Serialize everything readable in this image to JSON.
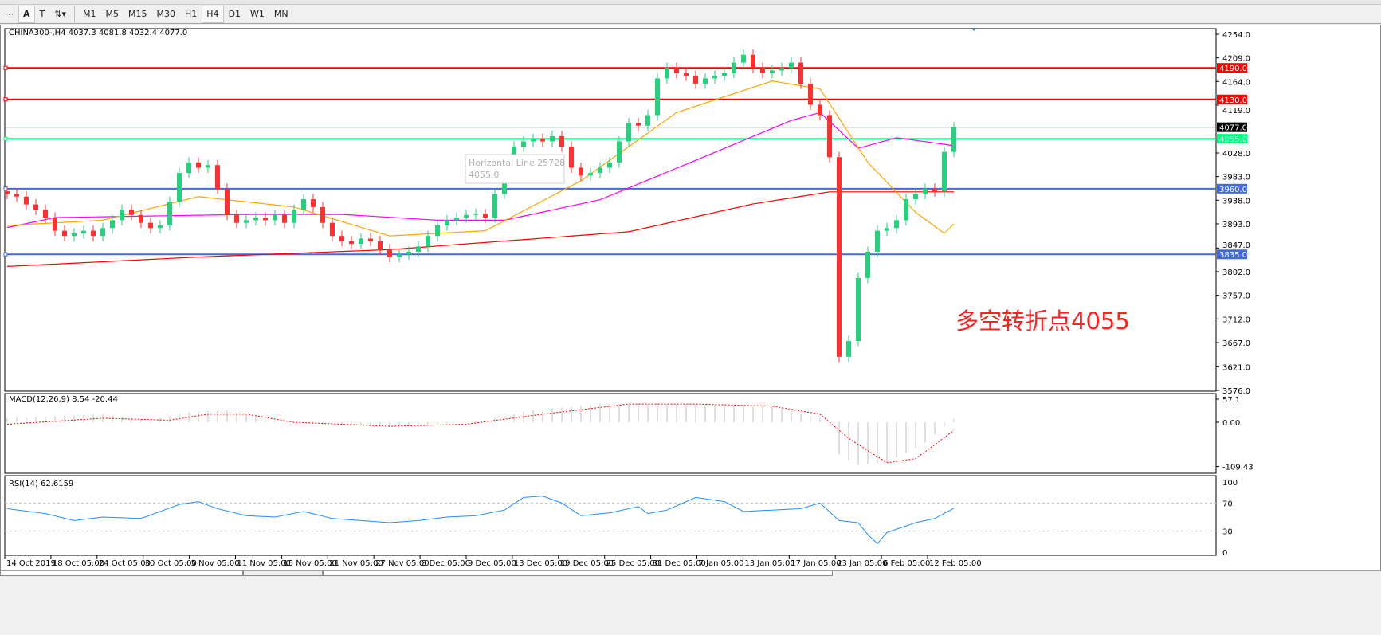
{
  "toolbar": {
    "icons": [
      "grid-dots-icon",
      "text-A-icon",
      "text-label-icon",
      "arrows-icon"
    ],
    "timeframes": [
      "M1",
      "M5",
      "M15",
      "M30",
      "H1",
      "H4",
      "D1",
      "W1",
      "MN"
    ],
    "active_timeframe": "H4"
  },
  "chart": {
    "header": "CHINA300-,H4  4037.3 4081.8 4032.4 4077.0",
    "annotation": "多空转折点4055",
    "tooltip": {
      "line1": "Horizontal Line 25728",
      "line2": "4055.0"
    },
    "colors": {
      "bull": "#26d07c",
      "bear": "#ff3030",
      "ma_fast": "#ffa500",
      "ma_mid": "#ff00ff",
      "ma_slow": "#ff0000",
      "rsi": "#1e90ff",
      "macd_hist": "#c0c0c0",
      "macd_signal": "#ff0000"
    }
  },
  "chart_data": [
    {
      "type": "candlestick",
      "title": "CHINA300-,H4",
      "ylim": [
        3576,
        4254
      ],
      "price_ticks": [
        "4254.0",
        "4209.0",
        "4164.0",
        "4119.0",
        "4028.0",
        "3983.0",
        "3938.0",
        "3893.0",
        "3847.0",
        "3802.0",
        "3757.0",
        "3712.0",
        "3667.0",
        "3621.0",
        "3576.0"
      ],
      "x_ticks": [
        "14 Oct 2019",
        "18 Oct 05:00",
        "24 Oct 05:00",
        "30 Oct 05:00",
        "5 Nov 05:00",
        "11 Nov 05:00",
        "15 Nov 05:00",
        "21 Nov 05:00",
        "27 Nov 05:00",
        "3 Dec 05:00",
        "9 Dec 05:00",
        "13 Dec 05:00",
        "19 Dec 05:00",
        "25 Dec 05:00",
        "31 Dec 05:00",
        "7 Jan 05:00",
        "13 Jan 05:00",
        "17 Jan 05:00",
        "23 Jan 05:00",
        "6 Feb 05:00",
        "12 Feb 05:00"
      ],
      "current_price": {
        "label": "4077.0",
        "value": 4077.0
      },
      "horizontal_lines": [
        {
          "value": 4190.0,
          "label": "4190.0",
          "color": "#ff0000"
        },
        {
          "value": 4130.0,
          "label": "4130.0",
          "color": "#ff0000"
        },
        {
          "value": 4055.0,
          "label": "4055.0",
          "color": "#00ff7f"
        },
        {
          "value": 3960.0,
          "label": "3960.0",
          "color": "#4169e1"
        },
        {
          "value": 3835.0,
          "label": "3835.0",
          "color": "#4169e1"
        }
      ],
      "close": [
        3950,
        3945,
        3930,
        3920,
        3905,
        3880,
        3870,
        3875,
        3880,
        3870,
        3885,
        3900,
        3920,
        3910,
        3895,
        3885,
        3890,
        3935,
        3990,
        4010,
        4000,
        4005,
        3960,
        3910,
        3895,
        3900,
        3905,
        3900,
        3910,
        3895,
        3920,
        3940,
        3925,
        3895,
        3870,
        3860,
        3855,
        3865,
        3860,
        3845,
        3830,
        3835,
        3840,
        3850,
        3870,
        3890,
        3900,
        3905,
        3910,
        3912,
        3905,
        3950,
        3990,
        4040,
        4050,
        4055,
        4050,
        4060,
        4040,
        4000,
        3985,
        3990,
        4000,
        4010,
        4050,
        4085,
        4080,
        4100,
        4170,
        4190,
        4180,
        4175,
        4160,
        4170,
        4175,
        4180,
        4200,
        4215,
        4190,
        4180,
        4185,
        4190,
        4200,
        4160,
        4120,
        4100,
        4020,
        3640,
        3670,
        3790,
        3840,
        3880,
        3885,
        3900,
        3940,
        3950,
        3960,
        3955,
        4030,
        4077
      ],
      "open_first": 3955,
      "wick": 10,
      "ma_fast": [
        [
          0,
          3890
        ],
        [
          10,
          3900
        ],
        [
          20,
          3945
        ],
        [
          30,
          3925
        ],
        [
          40,
          3870
        ],
        [
          50,
          3880
        ],
        [
          60,
          3975
        ],
        [
          70,
          4105
        ],
        [
          80,
          4165
        ],
        [
          85,
          4150
        ],
        [
          90,
          4010
        ],
        [
          95,
          3915
        ],
        [
          98,
          3875
        ],
        [
          99,
          3893
        ]
      ],
      "ma_mid": [
        [
          0,
          3886
        ],
        [
          5,
          3905
        ],
        [
          25,
          3911
        ],
        [
          35,
          3911
        ],
        [
          45,
          3900
        ],
        [
          52,
          3900
        ],
        [
          62,
          3939
        ],
        [
          72,
          4014
        ],
        [
          82,
          4090
        ],
        [
          85,
          4105
        ],
        [
          89,
          4037
        ],
        [
          93,
          4057
        ],
        [
          99,
          4042
        ]
      ],
      "ma_slow": [
        [
          0,
          3812
        ],
        [
          20,
          3830
        ],
        [
          40,
          3844
        ],
        [
          65,
          3878
        ],
        [
          78,
          3931
        ],
        [
          86,
          3954
        ],
        [
          99,
          3954
        ]
      ]
    },
    {
      "type": "bar+line",
      "title": "MACD(12,26,9) 8.54 -20.44",
      "ylim": [
        -109.43,
        57.1
      ],
      "ticks": [
        "57.1",
        "0.00",
        "-109.43"
      ],
      "histogram": [
        [
          0,
          10
        ],
        [
          10,
          20
        ],
        [
          15,
          5
        ],
        [
          19,
          25
        ],
        [
          23,
          30
        ],
        [
          27,
          5
        ],
        [
          33,
          -5
        ],
        [
          40,
          -10
        ],
        [
          45,
          -5
        ],
        [
          50,
          5
        ],
        [
          55,
          30
        ],
        [
          62,
          45
        ],
        [
          72,
          45
        ],
        [
          80,
          40
        ],
        [
          85,
          10
        ],
        [
          86,
          0
        ],
        [
          87,
          -80
        ],
        [
          89,
          -105
        ],
        [
          92,
          -100
        ],
        [
          96,
          -50
        ],
        [
          99,
          8.54
        ]
      ],
      "signal": [
        [
          0,
          -5
        ],
        [
          10,
          10
        ],
        [
          17,
          5
        ],
        [
          21,
          20
        ],
        [
          25,
          20
        ],
        [
          30,
          0
        ],
        [
          40,
          -10
        ],
        [
          48,
          -5
        ],
        [
          56,
          20
        ],
        [
          65,
          45
        ],
        [
          72,
          45
        ],
        [
          80,
          40
        ],
        [
          85,
          20
        ],
        [
          88,
          -40
        ],
        [
          92,
          -100
        ],
        [
          95,
          -90
        ],
        [
          99,
          -20.44
        ]
      ]
    },
    {
      "type": "line",
      "title": "RSI(14) 62.6159",
      "ylim": [
        0,
        100
      ],
      "ticks": [
        "100",
        "70",
        "30",
        "0"
      ],
      "levels": [
        70,
        30
      ],
      "values": [
        [
          0,
          62
        ],
        [
          4,
          55
        ],
        [
          7,
          45
        ],
        [
          10,
          50
        ],
        [
          14,
          48
        ],
        [
          18,
          68
        ],
        [
          20,
          72
        ],
        [
          22,
          62
        ],
        [
          25,
          52
        ],
        [
          28,
          50
        ],
        [
          31,
          58
        ],
        [
          34,
          48
        ],
        [
          37,
          45
        ],
        [
          40,
          42
        ],
        [
          43,
          45
        ],
        [
          46,
          50
        ],
        [
          49,
          52
        ],
        [
          52,
          60
        ],
        [
          54,
          78
        ],
        [
          56,
          80
        ],
        [
          58,
          70
        ],
        [
          60,
          52
        ],
        [
          63,
          56
        ],
        [
          66,
          65
        ],
        [
          67,
          55
        ],
        [
          69,
          60
        ],
        [
          72,
          78
        ],
        [
          75,
          72
        ],
        [
          77,
          58
        ],
        [
          80,
          60
        ],
        [
          83,
          62
        ],
        [
          85,
          70
        ],
        [
          87,
          45
        ],
        [
          89,
          42
        ],
        [
          90,
          25
        ],
        [
          91,
          12
        ],
        [
          92,
          28
        ],
        [
          95,
          42
        ],
        [
          97,
          48
        ],
        [
          99,
          62.6159
        ]
      ]
    }
  ]
}
